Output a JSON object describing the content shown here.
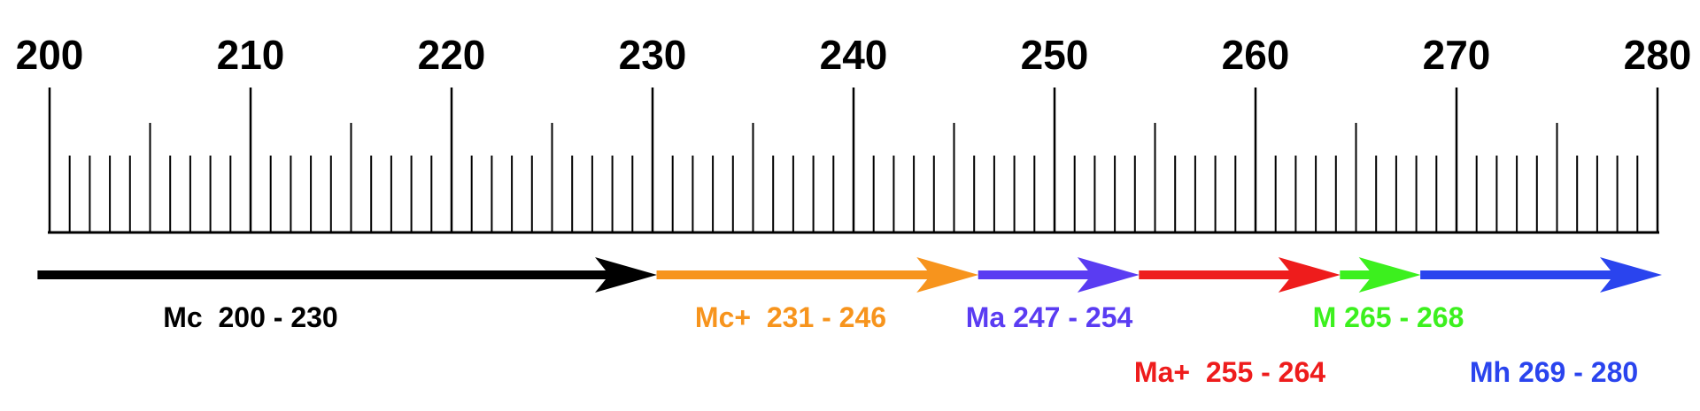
{
  "scale": {
    "labels": [
      200,
      210,
      220,
      230,
      240,
      250,
      260,
      270,
      280
    ]
  },
  "segments": [
    {
      "label": "Mc  200 - 230",
      "start": 200,
      "end": 230,
      "color": "#000000"
    },
    {
      "label": "Mc+  231 - 246",
      "start": 231,
      "end": 246,
      "color": "#f7941d"
    },
    {
      "label": "Ma 247 - 254",
      "start": 247,
      "end": 254,
      "color": "#5a3cf2"
    },
    {
      "label": "Ma+  255 - 264",
      "start": 255,
      "end": 264,
      "color": "#ee1c1c"
    },
    {
      "label": "M 265 - 268",
      "start": 265,
      "end": 268,
      "color": "#3cf01e"
    },
    {
      "label": "Mh 269 - 280",
      "start": 269,
      "end": 280,
      "color": "#2a44ee"
    }
  ]
}
